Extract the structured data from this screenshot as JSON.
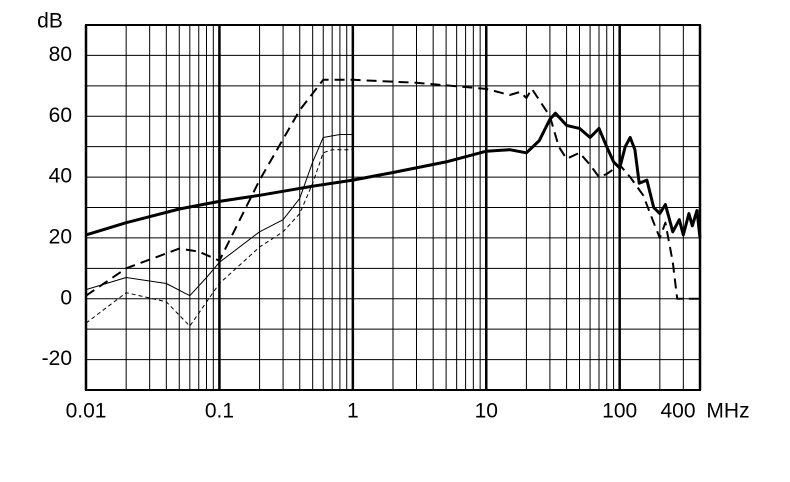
{
  "chart_data": {
    "type": "line",
    "x_label": "MHz",
    "y_label": "dB",
    "log_x": true,
    "grid": true,
    "xlim": [
      0.01,
      400
    ],
    "xticks": [
      0.01,
      0.1,
      1,
      10,
      100,
      400
    ],
    "ylim": [
      -30,
      90
    ],
    "yticks": [
      -20,
      0,
      20,
      40,
      60,
      80
    ],
    "series": [
      {
        "color": "#000000",
        "style": "solid",
        "width": 3,
        "x": [
          0.01,
          0.02,
          0.05,
          0.1,
          0.2,
          0.5,
          1,
          2,
          5,
          10,
          15,
          20,
          25,
          30,
          33,
          40,
          50,
          60,
          70,
          80,
          90,
          100,
          110,
          120,
          130,
          140,
          160,
          180,
          200,
          220,
          250,
          280,
          300,
          330,
          350,
          380,
          400
        ],
        "values": [
          21,
          25,
          29.5,
          32,
          34,
          37,
          39,
          41.5,
          45,
          48.5,
          49,
          48,
          52,
          59,
          61,
          57,
          56,
          53,
          56,
          50,
          45,
          43,
          50,
          53,
          49,
          38,
          39,
          30,
          28,
          31,
          22,
          26,
          21,
          28,
          24,
          29,
          20
        ]
      },
      {
        "color": "#000000",
        "style": "dashed",
        "width": 2,
        "x": [
          0.01,
          0.02,
          0.05,
          0.07,
          0.1,
          0.2,
          0.4,
          0.6,
          1,
          3,
          10,
          15,
          18,
          20,
          22,
          30,
          35,
          40,
          50,
          60,
          70,
          80,
          100,
          120,
          150,
          180,
          200,
          220,
          250,
          270,
          300,
          400
        ],
        "values": [
          1,
          10,
          16.5,
          15.5,
          12.5,
          39,
          62,
          72,
          72,
          71,
          69,
          67,
          68,
          66,
          69,
          60,
          50,
          46,
          48,
          44,
          40,
          41,
          44,
          40,
          34,
          25,
          20,
          25,
          12,
          0,
          0,
          0
        ]
      },
      {
        "color": "#000000",
        "style": "solid",
        "width": 1,
        "x": [
          0.01,
          0.02,
          0.04,
          0.06,
          0.08,
          0.1,
          0.2,
          0.3,
          0.4,
          0.5,
          0.6,
          0.8,
          1
        ],
        "values": [
          3,
          7,
          5,
          1,
          7,
          12,
          22,
          26,
          33,
          45,
          53,
          54,
          54
        ]
      },
      {
        "color": "#000000",
        "style": "dashed",
        "width": 1,
        "x": [
          0.01,
          0.02,
          0.04,
          0.06,
          0.1,
          0.2,
          0.3,
          0.4,
          0.5,
          0.6,
          0.7,
          1
        ],
        "values": [
          -8,
          2,
          -1,
          -9,
          5,
          17,
          22,
          28,
          38,
          48,
          49,
          49
        ]
      }
    ]
  }
}
